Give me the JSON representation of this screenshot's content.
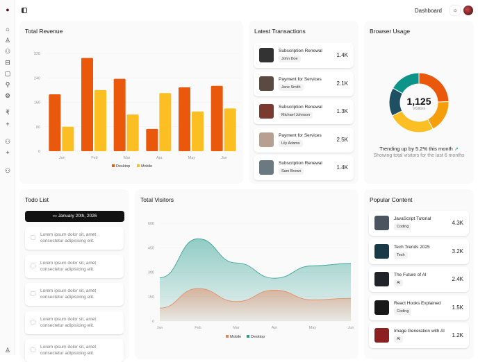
{
  "header": {
    "title": "Dashboard",
    "theme_icon": "sun-icon"
  },
  "sidebar": {
    "icons": [
      "logo-icon",
      "home-icon",
      "user-icon",
      "users-icon",
      "inbox-icon",
      "calendar-icon",
      "search-icon",
      "settings-icon",
      "rupee-icon",
      "plus-icon",
      "users-icon",
      "plus-icon",
      "users-icon"
    ],
    "bottom_icon": "user-icon"
  },
  "revenue": {
    "title": "Total Revenue"
  },
  "transactions": {
    "title": "Latest Transactions",
    "items": [
      {
        "title": "Subscription Renewal",
        "name": "John Doe",
        "amount": "1.4K",
        "color": "#333"
      },
      {
        "title": "Payment for Services",
        "name": "Jane Smith",
        "amount": "2.1K",
        "color": "#5a4a40"
      },
      {
        "title": "Subscription Renewal",
        "name": "Michael Johnson",
        "amount": "1.3K",
        "color": "#7a3a30"
      },
      {
        "title": "Payment for Services",
        "name": "Lily Adams",
        "amount": "2.5K",
        "color": "#b8a090"
      },
      {
        "title": "Subscription Renewal",
        "name": "Sam Brown",
        "amount": "1.4K",
        "color": "#6a7a80"
      }
    ]
  },
  "browser": {
    "title": "Browser Usage",
    "total": "1,125",
    "total_label": "Visitors",
    "trend": "Trending up by 5.2% this month",
    "subtitle": "Showing total visitors for the last 6 months",
    "trend_icon": "trending-up-icon"
  },
  "todo": {
    "title": "Todo List",
    "date": "January 20th, 2026",
    "items": [
      "Lorem ipsum dolor sit, amet consectetur adipisicing elit.",
      "Lorem ipsum dolor sit, amet consectetur adipisicing elit.",
      "Lorem ipsum dolor sit, amet consectetur adipisicing elit.",
      "Lorem ipsum dolor sit, amet consectetur adipisicing elit.",
      "Lorem ipsum dolor sit, amet consectetur adipisicing elit."
    ]
  },
  "visitors": {
    "title": "Total Visitors"
  },
  "popular": {
    "title": "Popular Content",
    "items": [
      {
        "title": "JavaScript Tutorial",
        "tag": "Coding",
        "value": "4.3K",
        "color": "#4a5560"
      },
      {
        "title": "Tech Trends 2025",
        "tag": "Tech",
        "value": "3.2K",
        "color": "#1a3a48"
      },
      {
        "title": "The Future of AI",
        "tag": "AI",
        "value": "2.4K",
        "color": "#202428"
      },
      {
        "title": "React Hooks Explained",
        "tag": "Coding",
        "value": "1.5K",
        "color": "#181818"
      },
      {
        "title": "Image Generation with AI",
        "tag": "AI",
        "value": "1.2K",
        "color": "#8a2020"
      }
    ]
  },
  "chart_data": [
    {
      "type": "bar",
      "categories": [
        "Jan",
        "Feb",
        "Mar",
        "Apr",
        "May",
        "Jun"
      ],
      "yticks": [
        0,
        80,
        160,
        240,
        320
      ],
      "ylim": [
        0,
        320
      ],
      "grid": true,
      "legend": "bottom",
      "series": [
        {
          "name": "Desktop",
          "values": [
            186,
            305,
            237,
            73,
            209,
            214
          ],
          "color": "#ea580c"
        },
        {
          "name": "Mobile",
          "values": [
            80,
            200,
            120,
            190,
            130,
            140
          ],
          "color": "#fbbf24"
        }
      ]
    },
    {
      "type": "pie",
      "donut": true,
      "values": [
        275,
        200,
        287,
        173,
        190
      ],
      "colors": [
        "#ea580c",
        "#f59e0b",
        "#fbbf24",
        "#1e4f63",
        "#0d9488"
      ]
    },
    {
      "type": "area",
      "stacked": true,
      "categories": [
        "Jan",
        "Feb",
        "Mar",
        "Apr",
        "May",
        "Jun"
      ],
      "yticks": [
        0,
        150,
        300,
        450,
        600
      ],
      "ylim": [
        0,
        600
      ],
      "grid": true,
      "legend": "bottom",
      "series": [
        {
          "name": "Mobile",
          "values": [
            80,
            200,
            120,
            190,
            130,
            140
          ],
          "color": "#e8845a"
        },
        {
          "name": "Desktop",
          "values": [
            186,
            305,
            237,
            73,
            209,
            214
          ],
          "color": "#2a9d8f"
        }
      ]
    }
  ]
}
